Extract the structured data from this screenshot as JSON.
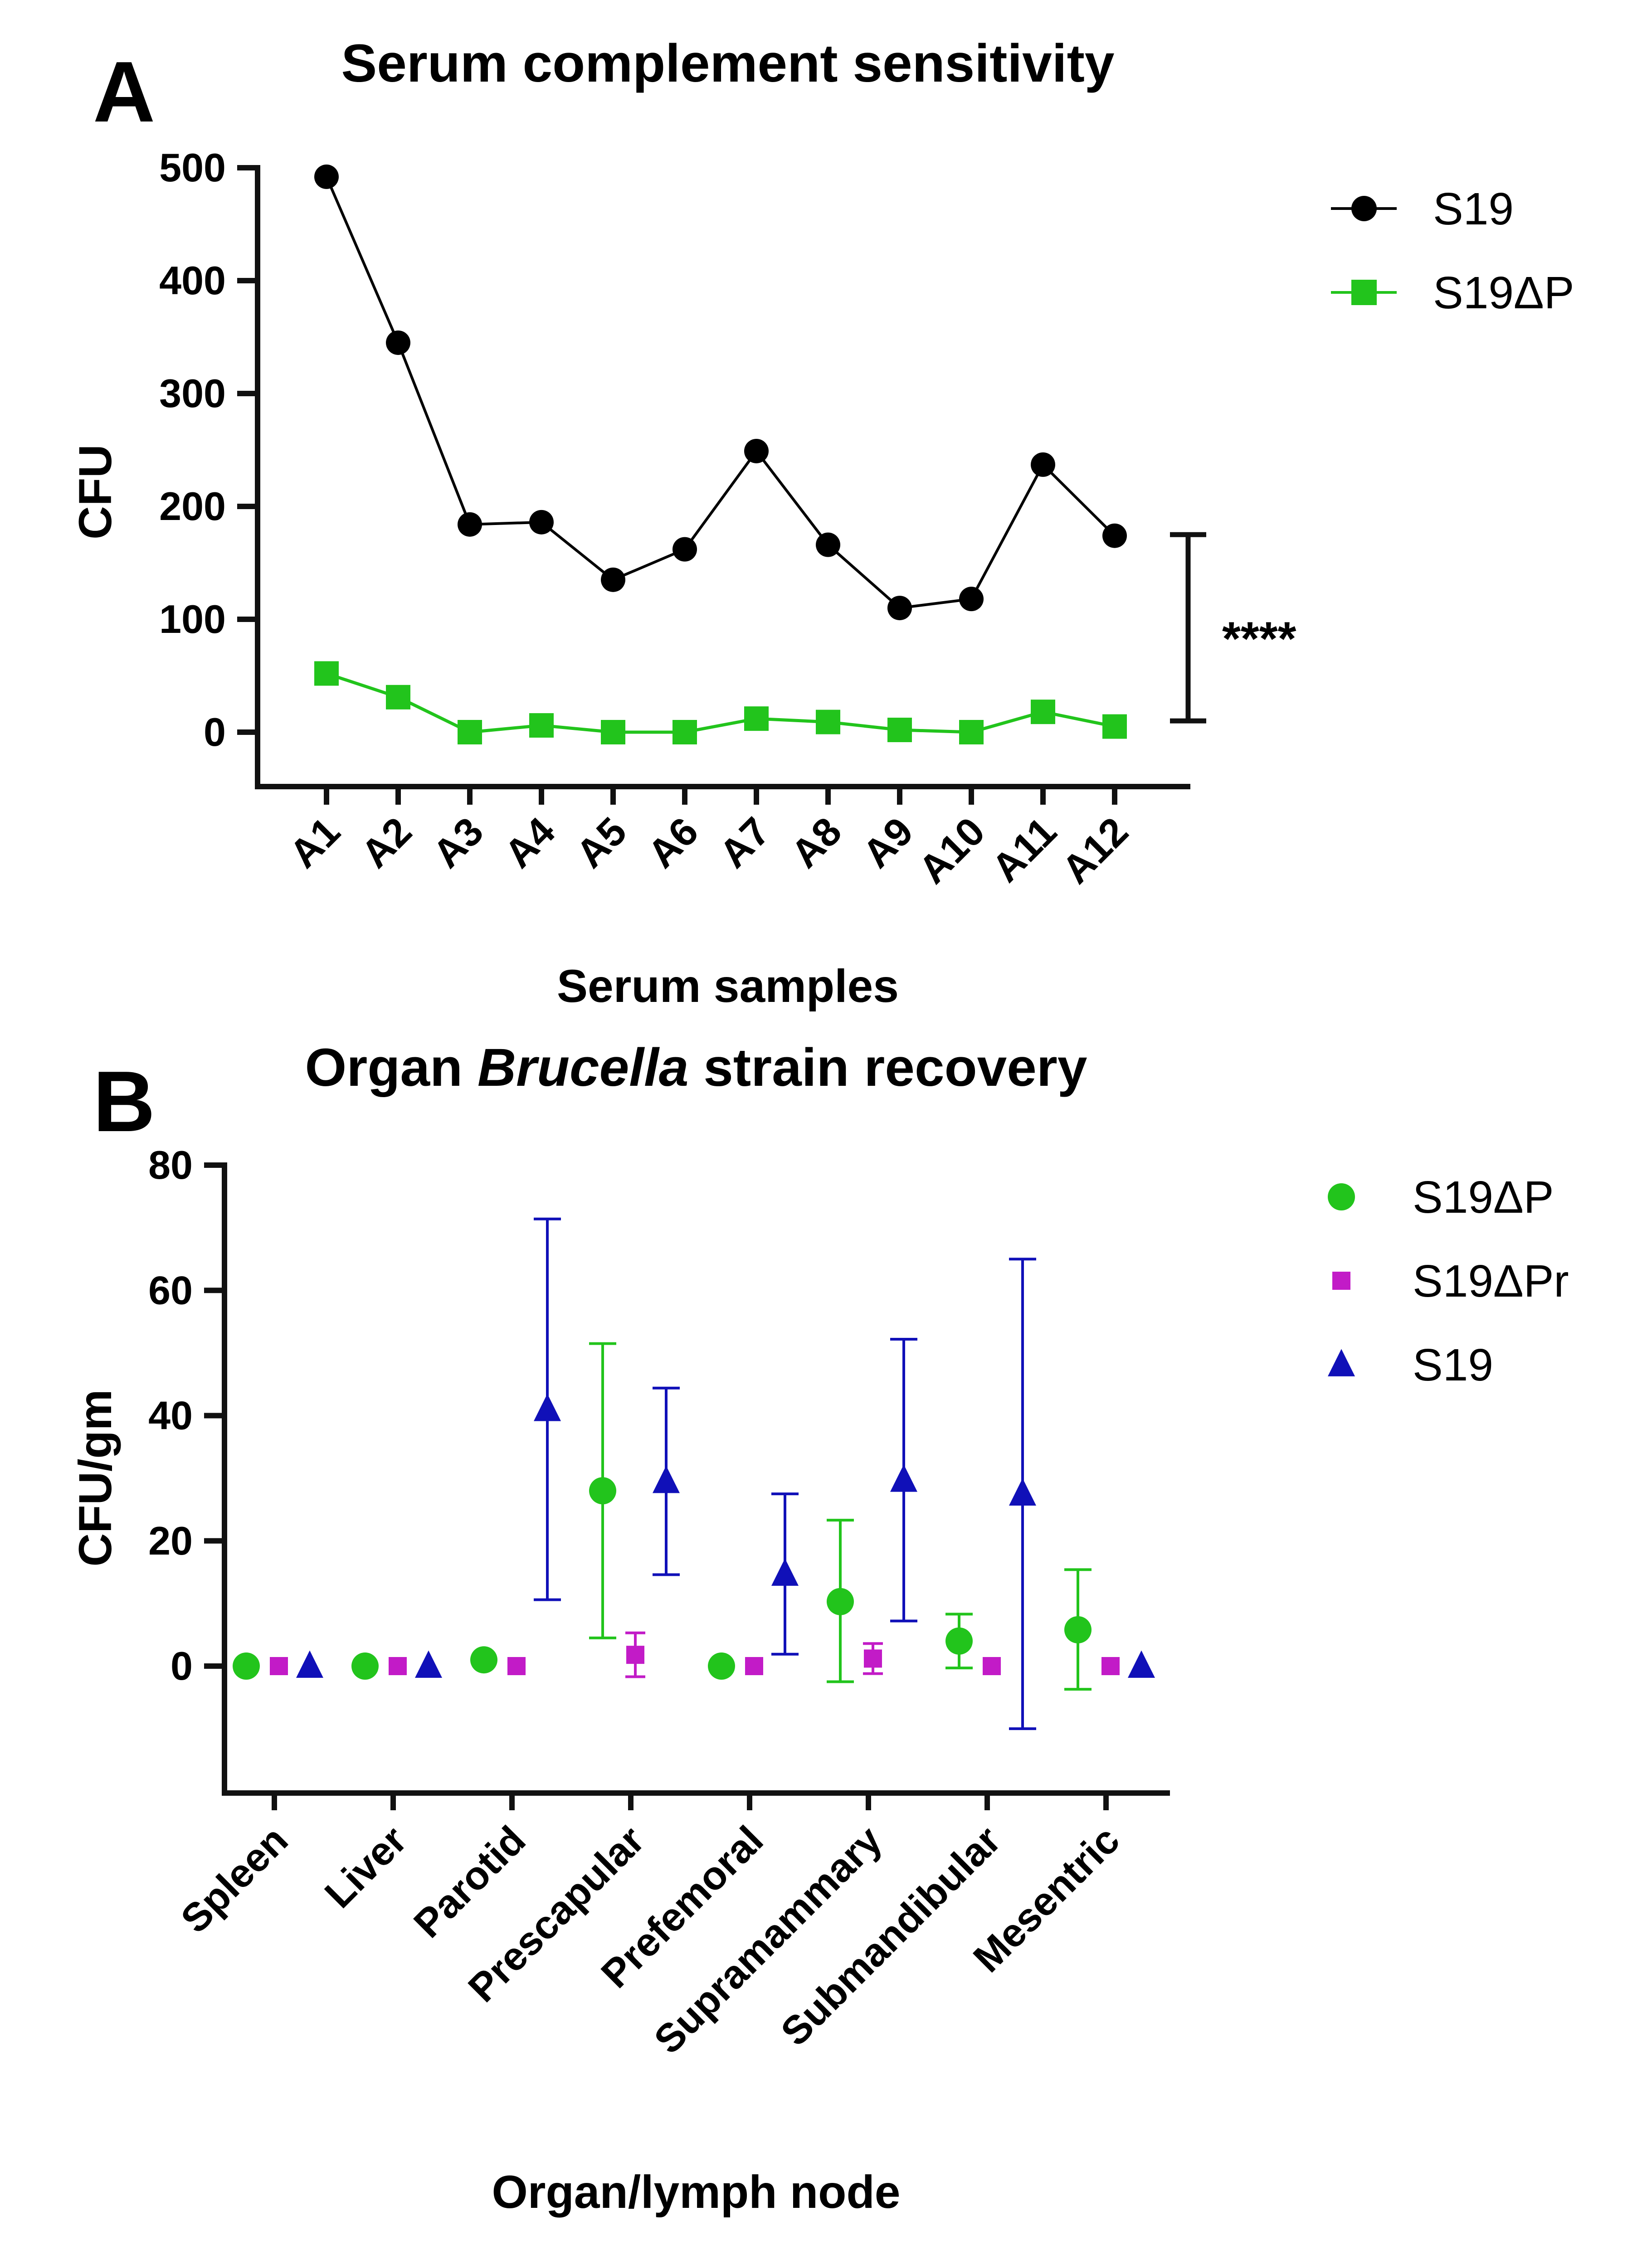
{
  "chart_data": [
    {
      "panel": "A",
      "type": "line",
      "title": "Serum complement sensitivity",
      "xlabel": "Serum samples",
      "ylabel": "CFU",
      "ylim": [
        -50,
        500
      ],
      "yticks": [
        0,
        100,
        200,
        300,
        400,
        500
      ],
      "categories": [
        "A1",
        "A2",
        "A3",
        "A4",
        "A5",
        "A6",
        "A7",
        "A8",
        "A9",
        "A10",
        "A11",
        "A12"
      ],
      "series": [
        {
          "name": "S19",
          "color": "#000000",
          "marker": "circle",
          "values": [
            492,
            345,
            184,
            186,
            135,
            162,
            249,
            166,
            110,
            118,
            237,
            174
          ]
        },
        {
          "name": "S19ΔP",
          "color": "#22c41c",
          "marker": "square",
          "values": [
            52,
            31,
            0,
            6,
            0,
            0,
            12,
            9,
            2,
            0,
            18,
            5
          ]
        }
      ],
      "annotation": {
        "text": "****",
        "from": 10,
        "to": 175
      },
      "legend_position": "top-right"
    },
    {
      "panel": "B",
      "type": "scatter",
      "title_plain_1": "Organ ",
      "title_italic": "Brucella",
      "title_plain_2": " strain recovery",
      "xlabel": "Organ/lymph node",
      "ylabel": "CFU/gm",
      "ylim": [
        -20,
        80
      ],
      "yticks": [
        0,
        20,
        40,
        60,
        80
      ],
      "categories": [
        "Spleen",
        "Liver",
        "Parotid",
        "Prescapular",
        "Prefemoral",
        "Supramammary",
        "Submandibular",
        "Mesentric"
      ],
      "series": [
        {
          "name": "S19ΔP",
          "color": "#22c41c",
          "marker": "circle",
          "points": [
            {
              "category": "Spleen",
              "value": 0
            },
            {
              "category": "Liver",
              "value": 0
            },
            {
              "category": "Parotid",
              "value": 1
            },
            {
              "category": "Prescapular",
              "value": 28,
              "err_low": 4.5,
              "err_high": 51.5
            },
            {
              "category": "Prefemoral",
              "value": 0
            },
            {
              "category": "Supramammary",
              "value": 10.3,
              "err_low": -2.5,
              "err_high": 23.3
            },
            {
              "category": "Submandibular",
              "value": 4,
              "err_low": -0.3,
              "err_high": 8.3
            },
            {
              "category": "Mesentric",
              "value": 5.8,
              "err_low": -3.7,
              "err_high": 15.4
            }
          ]
        },
        {
          "name": "S19ΔPr",
          "color": "#c21bc7",
          "marker": "square",
          "points": [
            {
              "category": "Spleen",
              "value": 0
            },
            {
              "category": "Liver",
              "value": 0
            },
            {
              "category": "Parotid",
              "value": 0
            },
            {
              "category": "Prescapular",
              "value": 1.8,
              "err_low": -1.7,
              "err_high": 5.3
            },
            {
              "category": "Prefemoral",
              "value": 0
            },
            {
              "category": "Supramammary",
              "value": 1.2,
              "err_low": -1.2,
              "err_high": 3.6
            },
            {
              "category": "Submandibular",
              "value": 0
            },
            {
              "category": "Mesentric",
              "value": 0
            }
          ]
        },
        {
          "name": "S19",
          "color": "#1010b8",
          "marker": "triangle",
          "points": [
            {
              "category": "Spleen",
              "value": 0
            },
            {
              "category": "Liver",
              "value": 0
            },
            {
              "category": "Parotid",
              "value": 41,
              "err_low": 10.6,
              "err_high": 71.4
            },
            {
              "category": "Prescapular",
              "value": 29.5,
              "err_low": 14.6,
              "err_high": 44.4
            },
            {
              "category": "Prefemoral",
              "value": 14.7,
              "err_low": 1.9,
              "err_high": 27.5
            },
            {
              "category": "Supramammary",
              "value": 29.7,
              "err_low": 7.2,
              "err_high": 52.2
            },
            {
              "category": "Submandibular",
              "value": 27.5,
              "err_low": -10,
              "err_high": 65
            },
            {
              "category": "Mesentric",
              "value": 0
            }
          ]
        }
      ],
      "legend_position": "top-right"
    }
  ]
}
